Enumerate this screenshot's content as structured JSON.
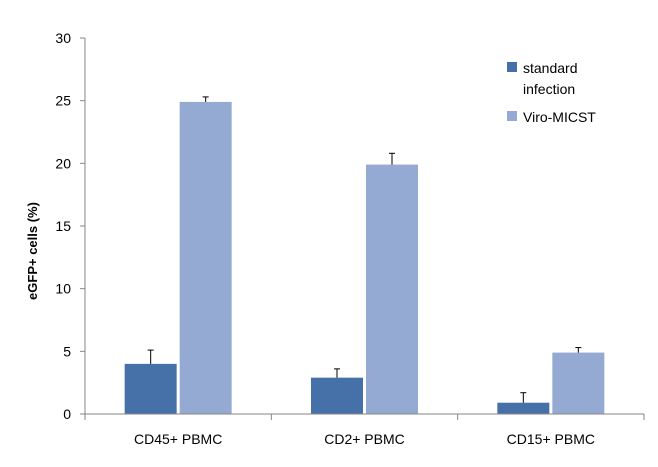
{
  "chart_data": {
    "type": "bar",
    "title": "",
    "xlabel": "",
    "ylabel": "eGFP+ cells (%)",
    "ylim": [
      0,
      30
    ],
    "yticks": [
      0,
      5,
      10,
      15,
      20,
      25,
      30
    ],
    "categories": [
      "CD45+ PBMC",
      "CD2+ PBMC",
      "CD15+ PBMC"
    ],
    "series": [
      {
        "name": "standard infection",
        "legend_lines": [
          "standard",
          "infection"
        ],
        "values": [
          4.0,
          2.9,
          0.9
        ],
        "errors": [
          1.1,
          0.7,
          0.8
        ],
        "color": "#4571a8"
      },
      {
        "name": "Viro-MICST",
        "legend_lines": [
          "Viro-MICST"
        ],
        "values": [
          24.9,
          19.9,
          4.9
        ],
        "errors": [
          0.4,
          0.9,
          0.4
        ],
        "color": "#95aad3"
      }
    ],
    "grid": false,
    "legend_position": "top-right"
  }
}
